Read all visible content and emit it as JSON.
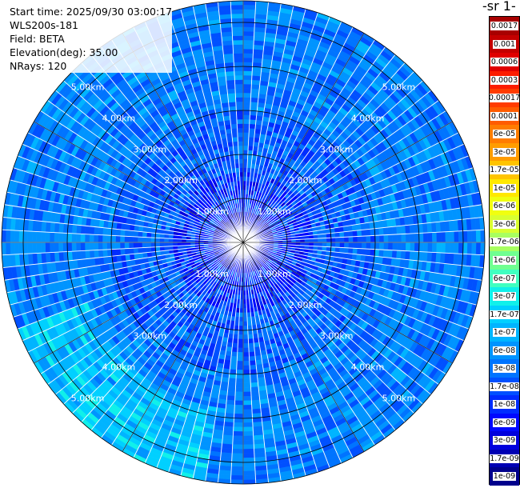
{
  "info": {
    "start_time": "Start time: 2025/09/30 03:00:17",
    "instrument": "WLS200s-181",
    "field": "Field: BETA",
    "elevation": "Elevation(deg): 35.00",
    "nrays": "NRays: 120"
  },
  "chart_data": {
    "type": "heatmap",
    "projection": "polar-ppi",
    "title": "",
    "field": "BETA",
    "elevation_deg": 35.0,
    "n_rays": 120,
    "range_unit": "km",
    "range_rings_km": [
      1,
      2,
      3,
      4,
      5
    ],
    "range_ring_labels": [
      "1.00km",
      "2.00km",
      "3.00km",
      "4.00km",
      "5.00km"
    ],
    "colorbar": {
      "title_visible": "-1 sr-",
      "tick_labels": [
        "0.0017",
        "0.001",
        "0.0006",
        "0.0003",
        "0.00017",
        "0.0001",
        "6e-05",
        "3e-05",
        "1.7e-05",
        "1e-05",
        "6e-06",
        "3e-06",
        "1.7e-06",
        "1e-06",
        "6e-07",
        "3e-07",
        "1.7e-07",
        "1e-07",
        "6e-08",
        "3e-08",
        "1.7e-08",
        "1e-08",
        "6e-09",
        "3e-09",
        "1.7e-09",
        "1e-09"
      ],
      "colors": [
        "#a80000",
        "#c40000",
        "#e00000",
        "#fc1c00",
        "#ff3c00",
        "#ff5c00",
        "#ff7c00",
        "#ff9c00",
        "#ffc400",
        "#ffe800",
        "#f0ff10",
        "#d8ff30",
        "#a8ff60",
        "#70ff90",
        "#40ffc0",
        "#10f0ea",
        "#00d0ff",
        "#00b4ff",
        "#0094ff",
        "#0074ff",
        "#0050ff",
        "#002cff",
        "#0008ff",
        "#0000dd",
        "#0000b4",
        "#00008c"
      ]
    },
    "typical_values": {
      "inner_core_km_0_to_1": "1e-09 to 1e-08",
      "mid_range_km_1_to_4": "3e-08 to 1.7e-07",
      "northeast_sector_outer": "1e-07 to 3e-07"
    }
  }
}
